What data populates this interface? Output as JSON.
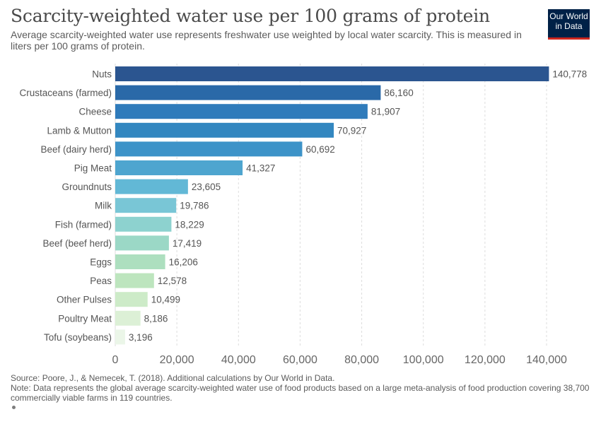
{
  "header": {
    "title": "Scarcity-weighted water use per 100 grams of protein",
    "subtitle": "Average scarcity-weighted water use represents freshwater use weighted by local water scarcity. This is measured in liters per 100 grams of protein."
  },
  "logo": {
    "line1": "Our World",
    "line2": "in Data",
    "bg": "#002147",
    "accent": "#ce261e"
  },
  "footer": {
    "source": "Source: Poore, J., & Nemecek, T. (2018). Additional calculations by Our World in Data.",
    "note": "Note: Data represents the global average scarcity-weighted water use of food products based on a large meta-analysis of food production covering 38,700 commercially viable farms in 119 countries."
  },
  "chart_data": {
    "type": "bar",
    "orientation": "horizontal",
    "categories": [
      "Nuts",
      "Crustaceans (farmed)",
      "Cheese",
      "Lamb & Mutton",
      "Beef (dairy herd)",
      "Pig Meat",
      "Groundnuts",
      "Milk",
      "Fish (farmed)",
      "Beef (beef herd)",
      "Eggs",
      "Peas",
      "Other Pulses",
      "Poultry Meat",
      "Tofu (soybeans)"
    ],
    "values": [
      140778,
      86160,
      81907,
      70927,
      60692,
      41327,
      23605,
      19786,
      18229,
      17419,
      16206,
      12578,
      10499,
      8186,
      3196
    ],
    "value_labels": [
      "140,778",
      "86,160",
      "81,907",
      "70,927",
      "60,692",
      "41,327",
      "23,605",
      "19,786",
      "18,229",
      "17,419",
      "16,206",
      "12,578",
      "10,499",
      "8,186",
      "3,196"
    ],
    "colors": [
      "#2b5590",
      "#2a69a8",
      "#2f7bbb",
      "#3387c0",
      "#3d93c8",
      "#4ea5cf",
      "#62b8d6",
      "#79c6d6",
      "#8dd2cf",
      "#9bd8c6",
      "#addfbf",
      "#bde5be",
      "#cdebc8",
      "#dcf0d6",
      "#ebf6e8"
    ],
    "xlim": [
      0,
      140000
    ],
    "x_ticks": [
      0,
      20000,
      40000,
      60000,
      80000,
      100000,
      120000,
      140000
    ],
    "x_tick_labels": [
      "0",
      "20,000",
      "40,000",
      "60,000",
      "80,000",
      "100,000",
      "120,000",
      "140,000"
    ],
    "grid": "vertical dashed"
  }
}
